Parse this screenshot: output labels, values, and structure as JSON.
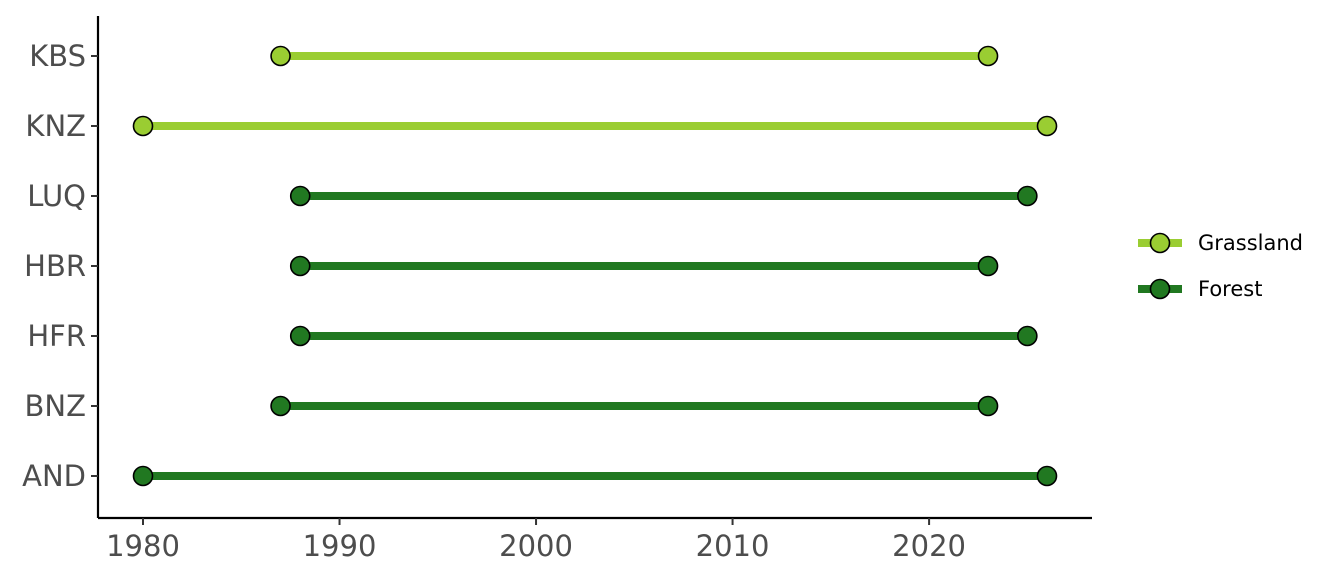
{
  "chart_data": {
    "type": "dumbbell",
    "title": "",
    "xlabel": "",
    "ylabel": "",
    "xlim": [
      1978,
      2028
    ],
    "xticks": [
      1980,
      1990,
      2000,
      2010,
      2020
    ],
    "categories": [
      "KBS",
      "KNZ",
      "LUQ",
      "HBR",
      "HFR",
      "BNZ",
      "AND"
    ],
    "legend_position": "right",
    "grid": false,
    "series": [
      {
        "name": "Grassland",
        "color": "#9acd32",
        "items": [
          {
            "site": "KBS",
            "start": 1987,
            "end": 2023
          },
          {
            "site": "KNZ",
            "start": 1980,
            "end": 2026
          }
        ]
      },
      {
        "name": "Forest",
        "color": "#217821",
        "items": [
          {
            "site": "LUQ",
            "start": 1988,
            "end": 2025
          },
          {
            "site": "HBR",
            "start": 1988,
            "end": 2023
          },
          {
            "site": "HFR",
            "start": 1988,
            "end": 2025
          },
          {
            "site": "BNZ",
            "start": 1987,
            "end": 2023
          },
          {
            "site": "AND",
            "start": 1980,
            "end": 2026
          }
        ]
      }
    ]
  }
}
